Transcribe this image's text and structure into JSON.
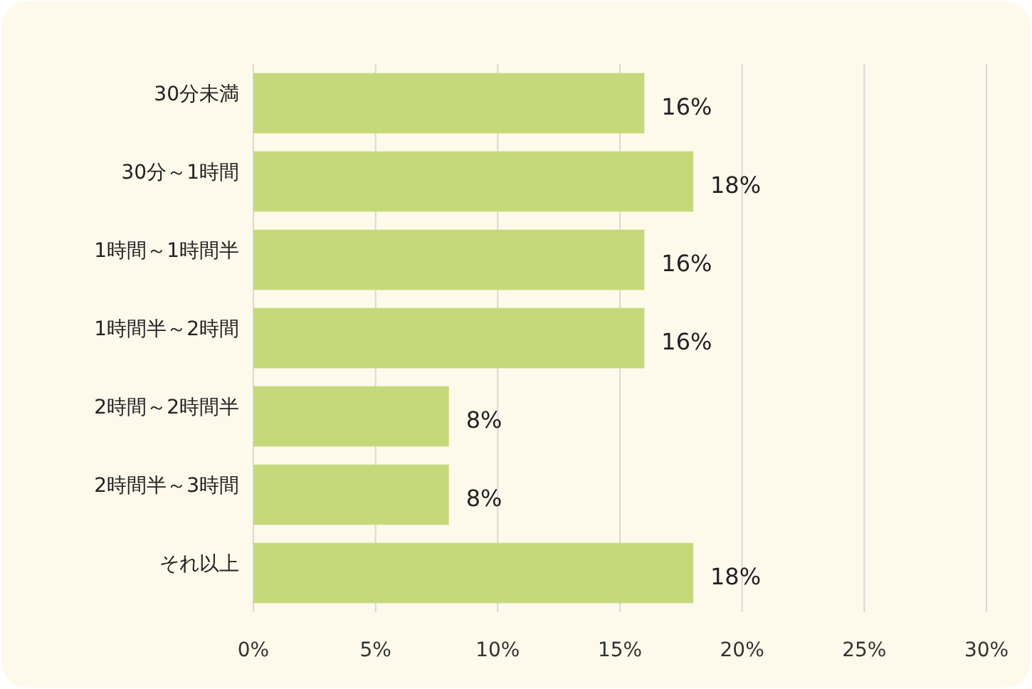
{
  "chart_data": {
    "type": "bar",
    "orientation": "horizontal",
    "categories": [
      "30分未満",
      "30分～1時間",
      "1時間～1時間半",
      "1時間半～2時間",
      "2時間～2時間半",
      "2時間半～3時間",
      "それ以上"
    ],
    "values": [
      16,
      18,
      16,
      16,
      8,
      8,
      18
    ],
    "value_labels": [
      "16%",
      "18%",
      "16%",
      "16%",
      "8%",
      "8%",
      "18%"
    ],
    "color": "#c5d97a",
    "xlim": [
      0,
      30
    ],
    "xticks": [
      {
        "value": 0,
        "label": "0%"
      },
      {
        "value": 5,
        "label": "5%"
      },
      {
        "value": 10,
        "label": "10%"
      },
      {
        "value": 15,
        "label": "15%"
      },
      {
        "value": 20,
        "label": "20%"
      },
      {
        "value": 25,
        "label": "25%"
      },
      {
        "value": 30,
        "label": "30%"
      }
    ],
    "grid": "x"
  }
}
